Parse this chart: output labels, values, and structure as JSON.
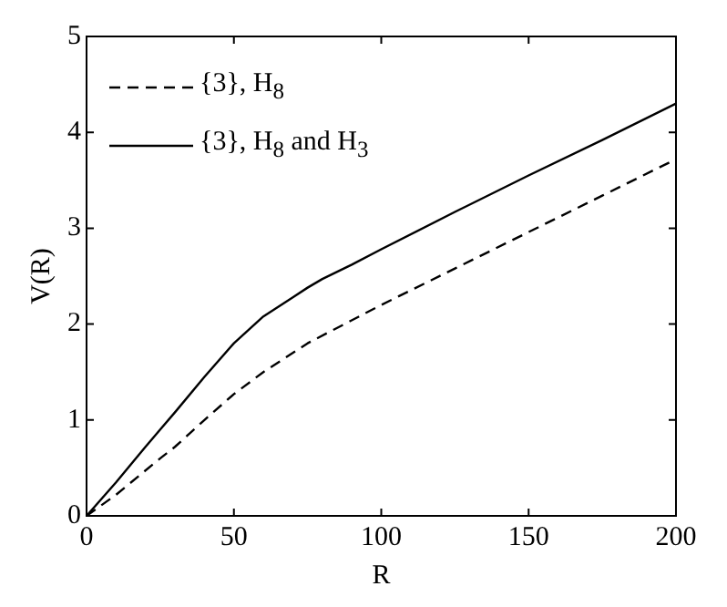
{
  "chart_data": {
    "type": "line",
    "xlabel": "R",
    "ylabel": "V(R)",
    "xlim": [
      0,
      200
    ],
    "ylim": [
      0,
      5
    ],
    "xticks": [
      0,
      50,
      100,
      150,
      200
    ],
    "yticks": [
      0,
      1,
      2,
      3,
      4,
      5
    ],
    "grid": false,
    "legend": "top left",
    "marker": "none",
    "series": [
      {
        "name": "{3}, H$_{8}$",
        "color": "#000000",
        "line_style": "dashed",
        "x": [
          0,
          10,
          25,
          30,
          40,
          50,
          60,
          75,
          100,
          125,
          150,
          175,
          200
        ],
        "values": [
          0,
          0.22,
          0.6,
          0.72,
          1.0,
          1.27,
          1.5,
          1.8,
          2.2,
          2.58,
          2.96,
          3.34,
          3.72
        ]
      },
      {
        "name": "{3}, H$_{8}$ and H$_{3}$",
        "color": "#000000",
        "line_style": "solid",
        "x": [
          0,
          10,
          20,
          25,
          30,
          40,
          50,
          60,
          70,
          75,
          80,
          90,
          100,
          125,
          150,
          175,
          200
        ],
        "values": [
          0,
          0.35,
          0.72,
          0.9,
          1.08,
          1.45,
          1.8,
          2.08,
          2.28,
          2.38,
          2.47,
          2.62,
          2.78,
          3.17,
          3.55,
          3.92,
          4.3
        ]
      }
    ]
  }
}
